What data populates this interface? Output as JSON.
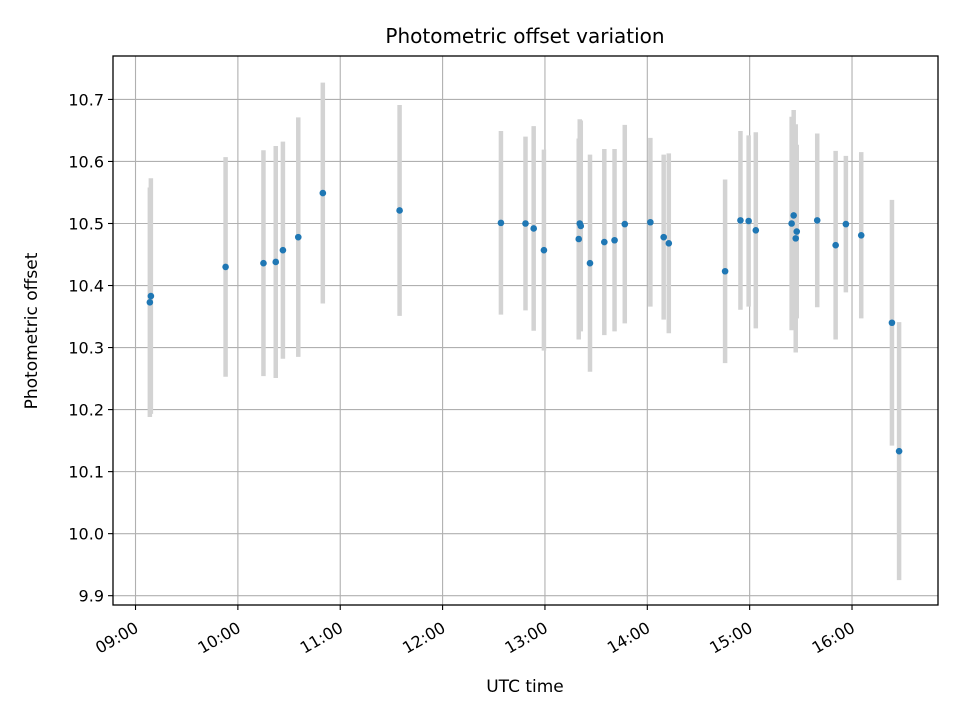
{
  "chart_data": {
    "type": "scatter",
    "title": "Photometric offset variation",
    "xlabel": "UTC time",
    "ylabel": "Photometric offset",
    "xlim_hours": [
      8.78,
      16.84
    ],
    "ylim": [
      9.885,
      10.77
    ],
    "grid": true,
    "x_ticks": [
      {
        "hour": 9,
        "label": "09:00"
      },
      {
        "hour": 10,
        "label": "10:00"
      },
      {
        "hour": 11,
        "label": "11:00"
      },
      {
        "hour": 12,
        "label": "12:00"
      },
      {
        "hour": 13,
        "label": "13:00"
      },
      {
        "hour": 14,
        "label": "14:00"
      },
      {
        "hour": 15,
        "label": "15:00"
      },
      {
        "hour": 16,
        "label": "16:00"
      }
    ],
    "y_ticks": [
      {
        "value": 9.9,
        "label": "9.9"
      },
      {
        "value": 10.0,
        "label": "10.0"
      },
      {
        "value": 10.1,
        "label": "10.1"
      },
      {
        "value": 10.2,
        "label": "10.2"
      },
      {
        "value": 10.3,
        "label": "10.3"
      },
      {
        "value": 10.4,
        "label": "10.4"
      },
      {
        "value": 10.5,
        "label": "10.5"
      },
      {
        "value": 10.6,
        "label": "10.6"
      },
      {
        "value": 10.7,
        "label": "10.7"
      }
    ],
    "colors": {
      "point": "#1f77b4",
      "errorbar": "#d3d3d3",
      "grid": "#b0b0b0"
    },
    "points": [
      {
        "x": 9.14,
        "y": 10.373,
        "err": 0.185
      },
      {
        "x": 9.15,
        "y": 10.383,
        "err": 0.19
      },
      {
        "x": 9.88,
        "y": 10.43,
        "err": 0.177
      },
      {
        "x": 10.25,
        "y": 10.436,
        "err": 0.182
      },
      {
        "x": 10.37,
        "y": 10.438,
        "err": 0.187
      },
      {
        "x": 10.44,
        "y": 10.457,
        "err": 0.175
      },
      {
        "x": 10.59,
        "y": 10.478,
        "err": 0.193
      },
      {
        "x": 10.83,
        "y": 10.549,
        "err": 0.178
      },
      {
        "x": 11.58,
        "y": 10.521,
        "err": 0.17
      },
      {
        "x": 12.57,
        "y": 10.501,
        "err": 0.148
      },
      {
        "x": 12.81,
        "y": 10.5,
        "err": 0.14
      },
      {
        "x": 12.89,
        "y": 10.492,
        "err": 0.165
      },
      {
        "x": 12.99,
        "y": 10.457,
        "err": 0.162
      },
      {
        "x": 13.33,
        "y": 10.475,
        "err": 0.162
      },
      {
        "x": 13.34,
        "y": 10.5,
        "err": 0.168
      },
      {
        "x": 13.35,
        "y": 10.496,
        "err": 0.17
      },
      {
        "x": 13.44,
        "y": 10.436,
        "err": 0.175
      },
      {
        "x": 13.58,
        "y": 10.47,
        "err": 0.15
      },
      {
        "x": 13.68,
        "y": 10.473,
        "err": 0.147
      },
      {
        "x": 13.78,
        "y": 10.499,
        "err": 0.16
      },
      {
        "x": 14.03,
        "y": 10.502,
        "err": 0.136
      },
      {
        "x": 14.16,
        "y": 10.478,
        "err": 0.133
      },
      {
        "x": 14.21,
        "y": 10.468,
        "err": 0.145
      },
      {
        "x": 14.76,
        "y": 10.423,
        "err": 0.148
      },
      {
        "x": 14.91,
        "y": 10.505,
        "err": 0.144
      },
      {
        "x": 14.99,
        "y": 10.504,
        "err": 0.138
      },
      {
        "x": 15.06,
        "y": 10.489,
        "err": 0.158
      },
      {
        "x": 15.41,
        "y": 10.5,
        "err": 0.172
      },
      {
        "x": 15.43,
        "y": 10.513,
        "err": 0.17
      },
      {
        "x": 15.45,
        "y": 10.476,
        "err": 0.184
      },
      {
        "x": 15.46,
        "y": 10.487,
        "err": 0.14
      },
      {
        "x": 15.66,
        "y": 10.505,
        "err": 0.14
      },
      {
        "x": 15.84,
        "y": 10.465,
        "err": 0.152
      },
      {
        "x": 15.94,
        "y": 10.499,
        "err": 0.11
      },
      {
        "x": 16.09,
        "y": 10.481,
        "err": 0.134
      },
      {
        "x": 16.39,
        "y": 10.34,
        "err": 0.198
      },
      {
        "x": 16.46,
        "y": 10.133,
        "err": 0.208
      }
    ]
  }
}
